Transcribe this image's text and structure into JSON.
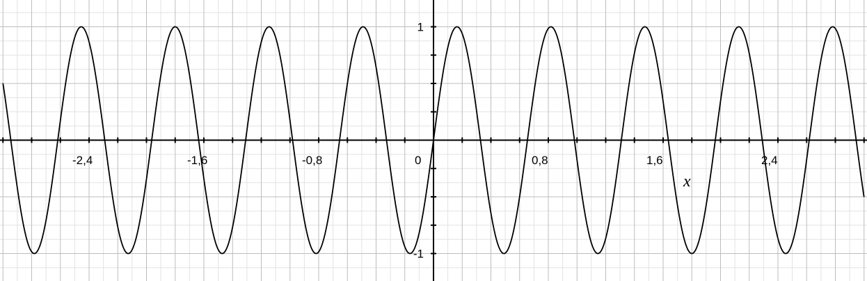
{
  "chart_data": {
    "type": "line",
    "title": "",
    "xlabel": "x",
    "ylabel": "",
    "xlim": [
      -3.0,
      3.0
    ],
    "ylim": [
      -1.25,
      1.25
    ],
    "grid": true,
    "function": {
      "amplitude": 1,
      "angular_frequency": 9.6,
      "phase": 0
    },
    "x_ticks": [
      {
        "value": -2.4,
        "label": "-2,4"
      },
      {
        "value": -1.6,
        "label": "-1,6"
      },
      {
        "value": -0.8,
        "label": "-0,8"
      },
      {
        "value": 0,
        "label": "0"
      },
      {
        "value": 0.8,
        "label": "0,8"
      },
      {
        "value": 1.6,
        "label": "1,6"
      },
      {
        "value": 2.4,
        "label": "2,4"
      }
    ],
    "y_ticks": [
      {
        "value": 1,
        "label": "1"
      },
      {
        "value": -1,
        "label": "-1"
      }
    ],
    "colors": {
      "curve": "#000000",
      "axis": "#000000",
      "grid_major": "#bdbdbd",
      "grid_minor": "#e2e2e2",
      "background": "#ffffff"
    }
  }
}
